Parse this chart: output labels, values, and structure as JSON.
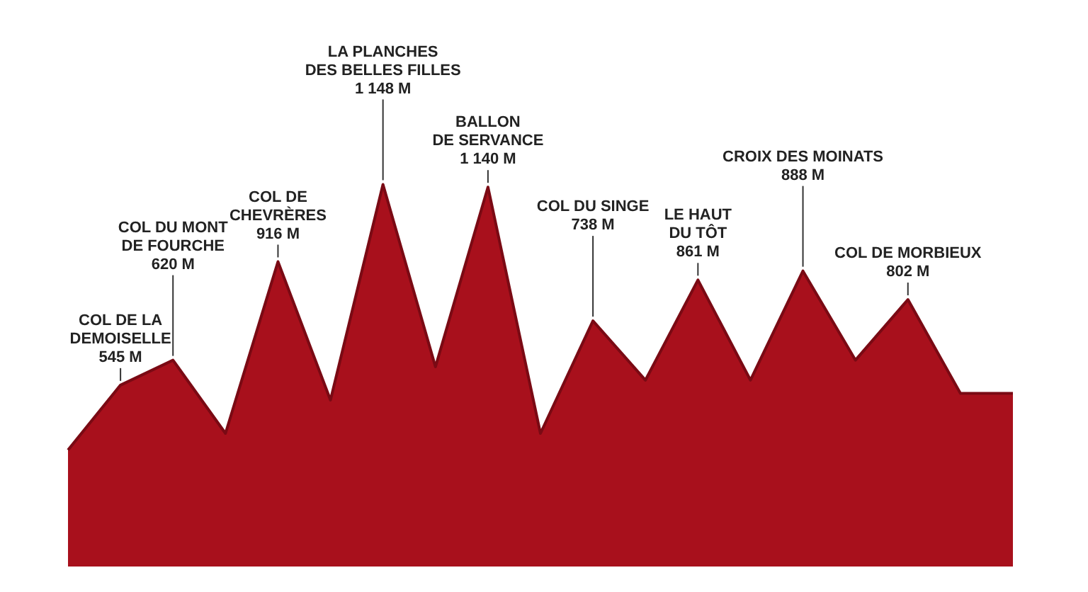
{
  "chart_data": {
    "type": "area",
    "tick_labels": false,
    "color": "#a8101c",
    "categories": [
      null,
      null,
      null,
      null,
      null,
      null,
      null,
      null,
      null,
      null,
      null,
      null,
      null,
      null,
      null,
      null,
      null,
      null,
      null
    ],
    "values": [
      350,
      545,
      620,
      400,
      916,
      500,
      1148,
      600,
      1140,
      400,
      738,
      560,
      861,
      560,
      888,
      620,
      802,
      520,
      520
    ],
    "value_labels": [
      null,
      "COL DE LA\nDEMOISELLE\n545 M",
      "COL DU MONT\nDE FOURCHE\n620 M",
      null,
      "COL DE\nCHEVRÈRES\n916 M",
      null,
      "LA PLANCHES\nDES BELLES FILLES\n1 148 M",
      null,
      "BALLON\nDE SERVANCE\n1 140 M",
      null,
      "COL DU SINGE\n738 M",
      null,
      "LE HAUT\nDU TÔT\n861 M",
      null,
      "CROIX DES MOINATS\n888 M",
      null,
      "COL DE MORBIEUX\n802 M",
      null,
      null
    ],
    "legend": false
  }
}
